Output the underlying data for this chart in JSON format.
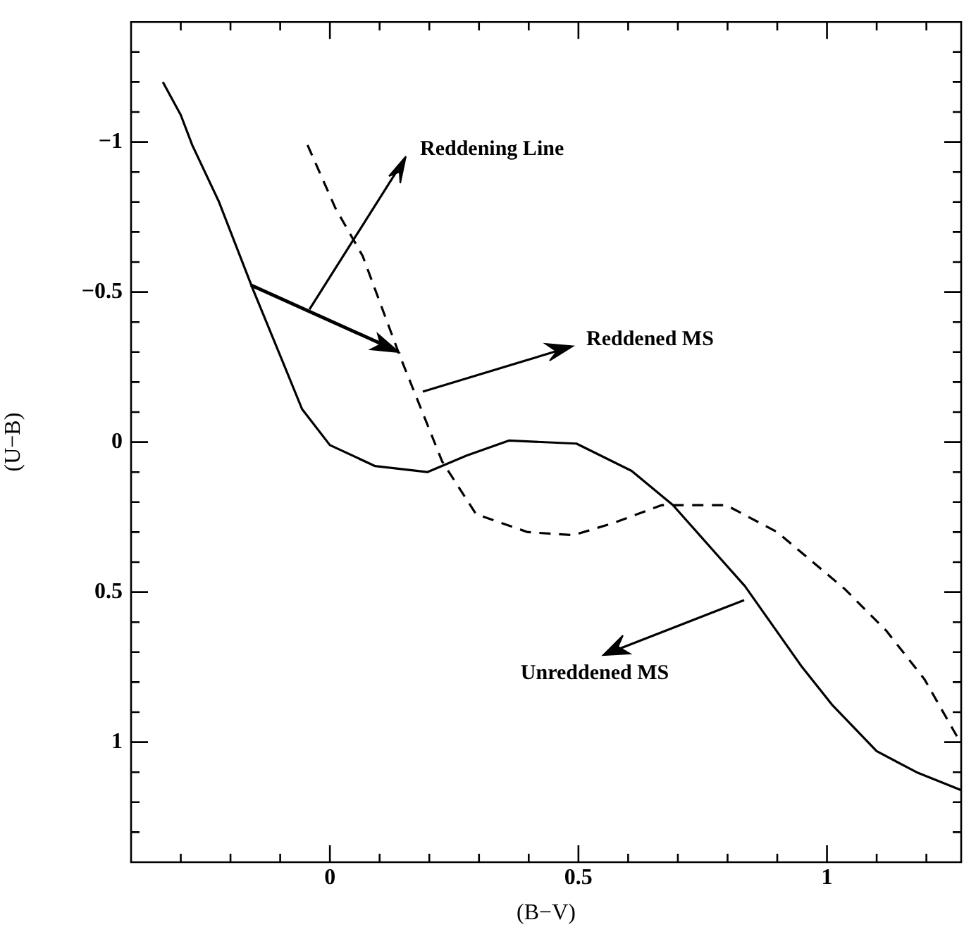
{
  "chart_data": {
    "type": "line",
    "xlabel": "(B−V)",
    "ylabel": "(U−B)",
    "xlim": [
      -0.4,
      1.27
    ],
    "ylim": [
      1.4,
      -1.4
    ],
    "xticks": [
      {
        "value": -0.3,
        "label": null
      },
      {
        "value": -0.2,
        "label": null
      },
      {
        "value": -0.1,
        "label": null
      },
      0,
      {
        "value": 0.1,
        "label": null
      },
      {
        "value": 0.2,
        "label": null
      },
      {
        "value": 0.3,
        "label": null
      },
      {
        "value": 0.4,
        "label": null
      },
      0.5,
      {
        "value": 0.6,
        "label": null
      },
      {
        "value": 0.7,
        "label": null
      },
      {
        "value": 0.8,
        "label": null
      },
      {
        "value": 0.9,
        "label": null
      },
      1,
      {
        "value": 1.1,
        "label": null
      },
      {
        "value": 1.2,
        "label": null
      }
    ],
    "yticks": [
      {
        "value": -1.3,
        "label": null
      },
      {
        "value": -1.2,
        "label": null
      },
      {
        "value": -1.1,
        "label": null
      },
      {
        "value": -1,
        "label": "−1"
      },
      {
        "value": -0.9,
        "label": null
      },
      {
        "value": -0.8,
        "label": null
      },
      {
        "value": -0.7,
        "label": null
      },
      {
        "value": -0.6,
        "label": null
      },
      {
        "value": -0.5,
        "label": "−0.5"
      },
      {
        "value": -0.4,
        "label": null
      },
      {
        "value": -0.3,
        "label": null
      },
      {
        "value": -0.2,
        "label": null
      },
      {
        "value": -0.1,
        "label": null
      },
      0,
      {
        "value": 0.1,
        "label": null
      },
      {
        "value": 0.2,
        "label": null
      },
      {
        "value": 0.3,
        "label": null
      },
      {
        "value": 0.4,
        "label": null
      },
      0.5,
      {
        "value": 0.6,
        "label": null
      },
      {
        "value": 0.7,
        "label": null
      },
      {
        "value": 0.8,
        "label": null
      },
      {
        "value": 0.9,
        "label": null
      },
      1,
      {
        "value": 1.1,
        "label": null
      },
      {
        "value": 1.2,
        "label": null
      },
      {
        "value": 1.3,
        "label": null
      }
    ],
    "grid": false,
    "legend": false,
    "marker": "none",
    "series": [
      {
        "color": "#000000",
        "line_style": "solid",
        "x": [
          -0.336,
          -0.3,
          -0.277,
          -0.223,
          -0.155,
          -0.093,
          -0.056,
          0,
          0.091,
          0.196,
          0.275,
          0.36,
          0.496,
          0.607,
          0.69,
          0.835,
          0.95,
          1.01,
          1.1,
          1.18,
          1.27
        ],
        "values": [
          -1.2,
          -1.09,
          -0.99,
          -0.8,
          -0.51,
          -0.26,
          -0.11,
          0.01,
          0.08,
          0.1,
          0.045,
          -0.005,
          0.005,
          0.096,
          0.21,
          0.48,
          0.75,
          0.875,
          1.03,
          1.1,
          1.16
        ]
      },
      {
        "color": "#000000",
        "line_style": "dashed",
        "x": [
          -0.045,
          0.011,
          0.066,
          0.14,
          0.226,
          0.294,
          0.398,
          0.49,
          0.57,
          0.668,
          0.797,
          0.9,
          1.036,
          1.12,
          1.196,
          1.263
        ],
        "values": [
          -0.99,
          -0.78,
          -0.62,
          -0.29,
          0.065,
          0.24,
          0.3,
          0.31,
          0.27,
          0.21,
          0.21,
          0.3,
          0.49,
          0.63,
          0.79,
          0.985
        ]
      }
    ],
    "annotations": [
      "Reddening Line",
      "Reddened MS",
      "Unreddened MS"
    ]
  }
}
